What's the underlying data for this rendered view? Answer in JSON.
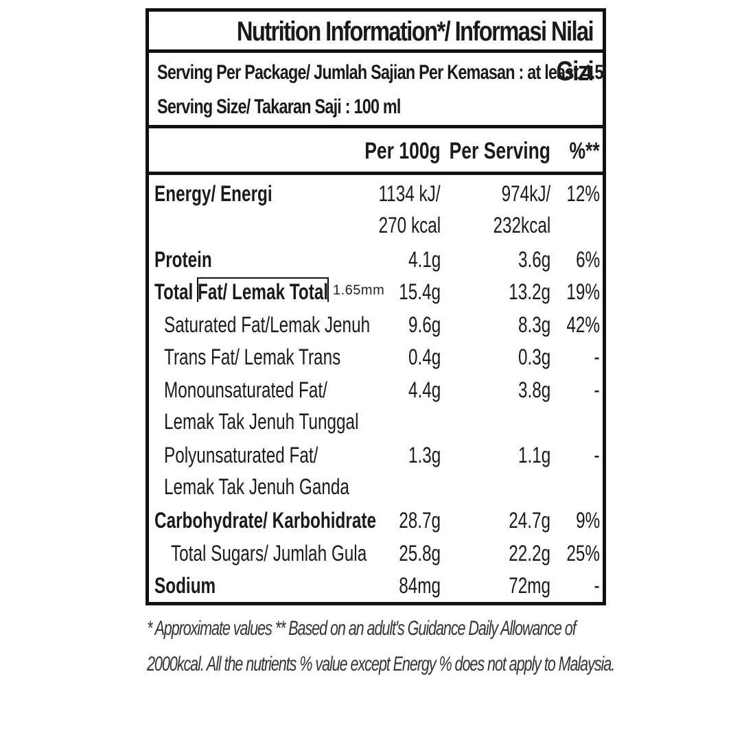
{
  "title": "Nutrition Information*/ Informasi Nilai Gizi",
  "serving_per_package": "Serving Per Package/ Jumlah Sajian Per Kemasan : at least 4.5",
  "serving_size": "Serving Size/ Takaran Saji : 100 ml",
  "columns": {
    "per100": "Per 100g",
    "perserving": "Per Serving",
    "pct": "%**"
  },
  "rows": [
    {
      "name": "Energy/ Energi",
      "bold": true,
      "per100": "1134 kJ/",
      "per100_2": "270 kcal",
      "perserving": "974kJ/",
      "perserving_2": "232kcal",
      "pct": "12%"
    },
    {
      "name": "Protein",
      "bold": true,
      "per100": "4.1g",
      "perserving": "3.6g",
      "pct": "6%"
    },
    {
      "name": "Total Fat/ Lemak Total",
      "bold": true,
      "per100": "15.4g",
      "perserving": "13.2g",
      "pct": "19%"
    },
    {
      "name": "Saturated Fat/Lemak Jenuh",
      "bold": false,
      "per100": "9.6g",
      "perserving": "8.3g",
      "pct": "42%"
    },
    {
      "name": "Trans Fat/ Lemak Trans",
      "bold": false,
      "per100": "0.4g",
      "perserving": "0.3g",
      "pct": "-"
    },
    {
      "name": "Monounsaturated Fat/",
      "name_2": "Lemak Tak Jenuh Tunggal",
      "bold": false,
      "per100": "4.4g",
      "perserving": "3.8g",
      "pct": "-"
    },
    {
      "name": "Polyunsaturated Fat/",
      "name_2": "Lemak Tak Jenuh Ganda",
      "bold": false,
      "per100": "1.3g",
      "perserving": "1.1g",
      "pct": "-"
    },
    {
      "name": "Carbohydrate/ Karbohidrate",
      "bold": true,
      "per100": "28.7g",
      "perserving": "24.7g",
      "pct": "9%"
    },
    {
      "name": "Total Sugars/ Jumlah Gula",
      "bold": false,
      "per100": "25.8g",
      "perserving": "22.2g",
      "pct": "25%"
    },
    {
      "name": "Sodium",
      "bold": true,
      "per100": "84mg",
      "perserving": "72mg",
      "pct": "-"
    }
  ],
  "annotation": "1.65mm",
  "footnote_line1": "* Approximate values  ** Based on an adult's  Guidance Daily Allowance of",
  "footnote_line2": "2000kcal. All the nutrients % value except Energy % does not apply to Malaysia."
}
